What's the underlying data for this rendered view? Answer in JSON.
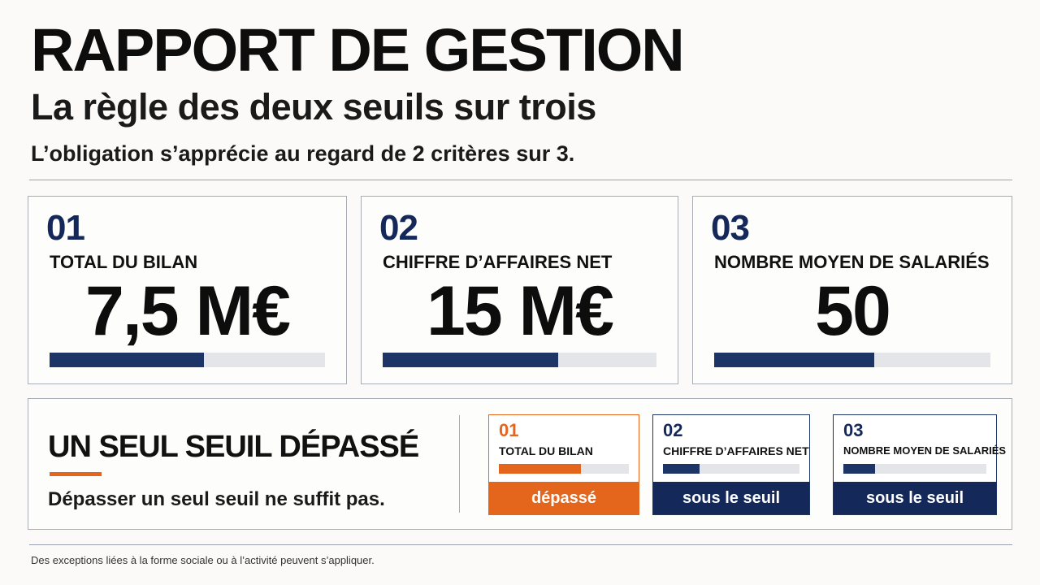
{
  "header": {
    "title": "RAPPORT DE GESTION",
    "subtitle": "La règle des deux seuils sur trois",
    "lead": "L’obligation s’apprécie au regard de 2 critères sur 3."
  },
  "criteria": [
    {
      "number": "01",
      "label": "TOTAL DU BILAN",
      "value": "7,5 M€",
      "bar_fill": 0.56
    },
    {
      "number": "02",
      "label": "CHIFFRE D’AFFAIRES NET",
      "value": "15 M€",
      "bar_fill": 0.64
    },
    {
      "number": "03",
      "label": "NOMBRE MOYEN DE SALARIÉS",
      "value": "50",
      "bar_fill": 0.58
    }
  ],
  "summary": {
    "heading": "UN SEUL SEUIL DÉPASSÉ",
    "note": "Dépasser un seul seuil ne suffit pas.",
    "items": [
      {
        "number": "01",
        "label": "TOTAL DU BILAN",
        "status": "dépassé",
        "exceeded": true,
        "bar_fill": 0.63
      },
      {
        "number": "02",
        "label": "CHIFFRE D’AFFAIRES NET",
        "status": "sous le seuil",
        "exceeded": false,
        "bar_fill": 0.27
      },
      {
        "number": "03",
        "label": "NOMBRE MOYEN DE SALARIÉS",
        "status": "sous le seuil",
        "exceeded": false,
        "bar_fill": 0.22
      }
    ]
  },
  "footnote": "Des exceptions liées à la forme sociale ou à l’activité peuvent s’appliquer.",
  "colors": {
    "navy": "#1c3566",
    "orange": "#e4651c",
    "track": "#e4e5e9"
  }
}
